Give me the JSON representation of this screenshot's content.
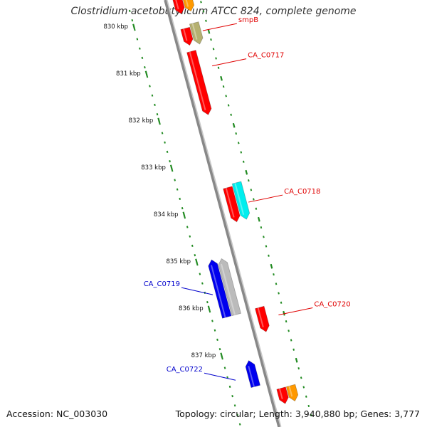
{
  "title": "Clostridium acetobutylicum ATCC 824, complete genome",
  "footer": {
    "accession": "Accession: NC_003030",
    "summary": "Topology: circular; Length: 3,940,880 bp; Genes: 3,777"
  },
  "colors": {
    "backbone": "#888888",
    "tick": "#228b22",
    "ruler_label": "#111111",
    "label_red": "#e00000",
    "label_blue": "#0000cc",
    "gene_red": "#ff0000",
    "gene_orange": "#ff9900",
    "gene_khaki": "#b5b070",
    "gene_cyan": "#00eeee",
    "gene_gray": "#bbbbbb",
    "gene_blue": "#0000ee"
  },
  "ruler": [
    {
      "kbp": 830,
      "label": "830 kbp"
    },
    {
      "kbp": 831,
      "label": "831 kbp"
    },
    {
      "kbp": 832,
      "label": "832 kbp"
    },
    {
      "kbp": 833,
      "label": "833 kbp"
    },
    {
      "kbp": 834,
      "label": "834 kbp"
    },
    {
      "kbp": 835,
      "label": "835 kbp"
    },
    {
      "kbp": 836,
      "label": "836 kbp"
    },
    {
      "kbp": 837,
      "label": "837 kbp"
    }
  ],
  "genes": [
    {
      "start": 829.62,
      "end": 830.0,
      "strand": "+",
      "ring": 1,
      "color": "gene_red"
    },
    {
      "start": 829.62,
      "end": 830.0,
      "strand": "+",
      "ring": 2,
      "color": "gene_orange"
    },
    {
      "start": 830.31,
      "end": 830.67,
      "strand": "+",
      "ring": 1,
      "color": "gene_red"
    },
    {
      "start": 830.25,
      "end": 830.7,
      "strand": "+",
      "ring": 2,
      "color": "gene_khaki"
    },
    {
      "start": 830.8,
      "end": 832.15,
      "strand": "+",
      "ring": 1,
      "color": "gene_red"
    },
    {
      "start": 833.7,
      "end": 834.43,
      "strand": "+",
      "ring": 1,
      "color": "gene_red"
    },
    {
      "start": 833.65,
      "end": 834.43,
      "strand": "+",
      "ring": 2,
      "color": "gene_cyan"
    },
    {
      "start": 835.08,
      "end": 836.27,
      "strand": "-",
      "ring": 1,
      "color": "gene_gray"
    },
    {
      "start": 835.05,
      "end": 836.27,
      "strand": "-",
      "ring": 2,
      "color": "gene_blue"
    },
    {
      "start": 836.25,
      "end": 836.77,
      "strand": "+",
      "ring": 1,
      "color": "gene_red"
    },
    {
      "start": 837.25,
      "end": 837.8,
      "strand": "-",
      "ring": 1,
      "color": "gene_blue"
    },
    {
      "start": 837.97,
      "end": 838.3,
      "strand": "+",
      "ring": 1,
      "color": "gene_red"
    },
    {
      "start": 837.97,
      "end": 838.3,
      "strand": "+",
      "ring": 2,
      "color": "gene_orange"
    }
  ],
  "labels": [
    {
      "text": "smpB",
      "at_kbp": 830.45,
      "strand": "+",
      "color": "label_red"
    },
    {
      "text": "CA_C0717",
      "at_kbp": 831.2,
      "strand": "+",
      "color": "label_red"
    },
    {
      "text": "CA_C0718",
      "at_kbp": 834.1,
      "strand": "+",
      "color": "label_red"
    },
    {
      "text": "CA_C0719",
      "at_kbp": 835.75,
      "strand": "-",
      "color": "label_blue"
    },
    {
      "text": "CA_C0720",
      "at_kbp": 836.5,
      "strand": "+",
      "color": "label_red"
    },
    {
      "text": "CA_C0722",
      "at_kbp": 837.57,
      "strand": "-",
      "color": "label_blue"
    }
  ]
}
